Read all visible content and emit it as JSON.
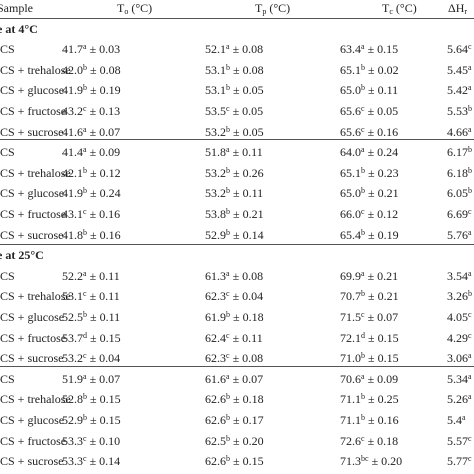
{
  "header": {
    "sample": "Sample",
    "columns": [
      {
        "symbol": "T",
        "sub": "o",
        "unit": " (°C)"
      },
      {
        "symbol": "T",
        "sub": "p",
        "unit": " (°C)"
      },
      {
        "symbol": "T",
        "sub": "c",
        "unit": " (°C)"
      },
      {
        "symbol": "ΔH",
        "sub": "r",
        "unit": ""
      }
    ]
  },
  "sections": [
    {
      "title": "e at 4°C",
      "groups": [
        [
          {
            "sample": "CS",
            "cells": [
              [
                "41.7",
                "a",
                "± 0.03"
              ],
              [
                "52.1",
                "a",
                "± 0.08"
              ],
              [
                "63.4",
                "a",
                "± 0.15"
              ],
              [
                "5.64",
                "c"
              ]
            ]
          },
          {
            "sample": "CS + trehalose",
            "cells": [
              [
                "42.0",
                "b",
                "± 0.08"
              ],
              [
                "53.1",
                "b",
                "± 0.08"
              ],
              [
                "65.1",
                "b",
                "± 0.02"
              ],
              [
                "5.45",
                "a"
              ]
            ]
          },
          {
            "sample": "CS + glucose",
            "cells": [
              [
                "41.9",
                "b",
                "± 0.19"
              ],
              [
                "53.1",
                "b",
                "± 0.05"
              ],
              [
                "65.0",
                "b",
                "± 0.11"
              ],
              [
                "5.42",
                "a"
              ]
            ]
          },
          {
            "sample": "CS + fructose",
            "cells": [
              [
                "43.2",
                "c",
                "± 0.13"
              ],
              [
                "53.5",
                "c",
                "± 0.05"
              ],
              [
                "65.6",
                "c",
                "± 0.05"
              ],
              [
                "5.53",
                "b"
              ]
            ]
          },
          {
            "sample": "CS + sucrose",
            "cells": [
              [
                "41.6",
                "a",
                "± 0.07"
              ],
              [
                "53.2",
                "b",
                "± 0.05"
              ],
              [
                "65.6",
                "c",
                "± 0.16"
              ],
              [
                "4.66",
                "a"
              ]
            ]
          }
        ],
        [
          {
            "sample": "CS",
            "cells": [
              [
                "41.4",
                "a",
                "± 0.09"
              ],
              [
                "51.8",
                "a",
                "± 0.11"
              ],
              [
                "64.0",
                "a",
                "± 0.24"
              ],
              [
                "6.17",
                "b"
              ]
            ]
          },
          {
            "sample": "CS + trehalose",
            "cells": [
              [
                "42.1",
                "b",
                "± 0.12"
              ],
              [
                "53.2",
                "b",
                "± 0.26"
              ],
              [
                "65.1",
                "b",
                "± 0.23"
              ],
              [
                "6.18",
                "b"
              ]
            ]
          },
          {
            "sample": "CS + glucose",
            "cells": [
              [
                "41.9",
                "b",
                "± 0.24"
              ],
              [
                "53.2",
                "b",
                "± 0.11"
              ],
              [
                "65.0",
                "b",
                "± 0.21"
              ],
              [
                "6.05",
                "b"
              ]
            ]
          },
          {
            "sample": "CS + fructose",
            "cells": [
              [
                "43.1",
                "c",
                "± 0.16"
              ],
              [
                "53.8",
                "b",
                "± 0.21"
              ],
              [
                "66.0",
                "c",
                "± 0.12"
              ],
              [
                "6.69",
                "c"
              ]
            ]
          },
          {
            "sample": "CS + sucrose",
            "cells": [
              [
                "41.8",
                "b",
                "± 0.16"
              ],
              [
                "52.9",
                "b",
                "± 0.14"
              ],
              [
                "65.4",
                "b",
                "± 0.19"
              ],
              [
                "5.76",
                "a"
              ]
            ]
          }
        ]
      ]
    },
    {
      "title": "e at 25°C",
      "groups": [
        [
          {
            "sample": "CS",
            "cells": [
              [
                "52.2",
                "a",
                "± 0.11"
              ],
              [
                "61.3",
                "a",
                "± 0.08"
              ],
              [
                "69.9",
                "a",
                "± 0.21"
              ],
              [
                "3.54",
                "a"
              ]
            ]
          },
          {
            "sample": "CS + trehalose",
            "cells": [
              [
                "53.1",
                "c",
                "± 0.11"
              ],
              [
                "62.3",
                "c",
                "± 0.04"
              ],
              [
                "70.7",
                "b",
                "± 0.21"
              ],
              [
                "3.26",
                "b"
              ]
            ]
          },
          {
            "sample": "CS + glucose",
            "cells": [
              [
                "52.5",
                "b",
                "± 0.11"
              ],
              [
                "61.9",
                "b",
                "± 0.18"
              ],
              [
                "71.5",
                "c",
                "± 0.07"
              ],
              [
                "4.05",
                "c"
              ]
            ]
          },
          {
            "sample": "CS + fructose",
            "cells": [
              [
                "53.7",
                "d",
                "± 0.15"
              ],
              [
                "62.4",
                "c",
                "± 0.11"
              ],
              [
                "72.1",
                "d",
                "± 0.15"
              ],
              [
                "4.29",
                "c"
              ]
            ]
          },
          {
            "sample": "CS + sucrose",
            "cells": [
              [
                "53.2",
                "c",
                "± 0.04"
              ],
              [
                "62.3",
                "c",
                "± 0.08"
              ],
              [
                "71.0",
                "b",
                "± 0.15"
              ],
              [
                "3.06",
                "a"
              ]
            ]
          }
        ],
        [
          {
            "sample": "CS",
            "cells": [
              [
                "51.9",
                "a",
                "± 0.07"
              ],
              [
                "61.6",
                "a",
                "± 0.07"
              ],
              [
                "70.6",
                "a",
                "± 0.09"
              ],
              [
                "5.34",
                "a"
              ]
            ]
          },
          {
            "sample": "CS + trehalose",
            "cells": [
              [
                "52.8",
                "b",
                "± 0.15"
              ],
              [
                "62.6",
                "b",
                "± 0.18"
              ],
              [
                "71.1",
                "b",
                "± 0.25"
              ],
              [
                "5.26",
                "a"
              ]
            ]
          },
          {
            "sample": "CS + glucose",
            "cells": [
              [
                "52.9",
                "b",
                "± 0.15"
              ],
              [
                "62.6",
                "b",
                "± 0.17"
              ],
              [
                "71.1",
                "b",
                "± 0.16"
              ],
              [
                "5.4",
                "a"
              ]
            ]
          },
          {
            "sample": "CS + fructose",
            "cells": [
              [
                "53.3",
                "c",
                "± 0.10"
              ],
              [
                "62.5",
                "b",
                "± 0.20"
              ],
              [
                "72.6",
                "c",
                "± 0.18"
              ],
              [
                "5.57",
                "c"
              ]
            ]
          },
          {
            "sample": "CS + sucrose",
            "cells": [
              [
                "53.3",
                "c",
                "± 0.14"
              ],
              [
                "62.6",
                "b",
                "± 0.15"
              ],
              [
                "71.3",
                "bc",
                "± 0.20"
              ],
              [
                "5.77",
                "c"
              ]
            ]
          }
        ]
      ]
    }
  ]
}
